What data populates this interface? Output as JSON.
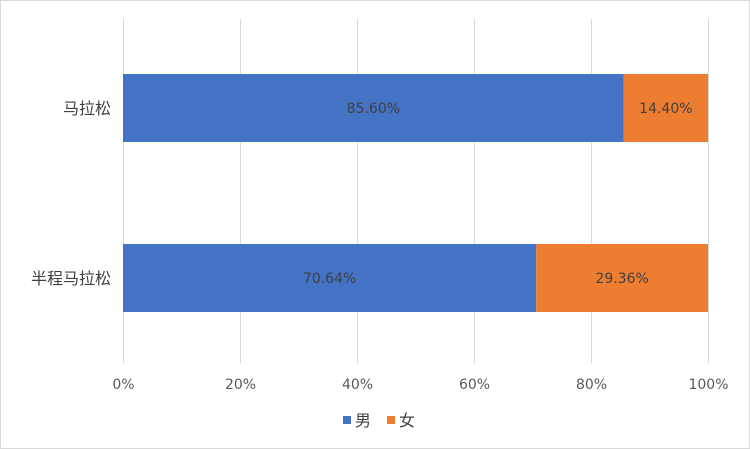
{
  "chart_data": {
    "type": "bar",
    "orientation": "horizontal",
    "stacked": "percent",
    "categories": [
      "马拉松",
      "半程马拉松"
    ],
    "series": [
      {
        "name": "男",
        "values": [
          85.6,
          70.64
        ],
        "labels": [
          "85.60%",
          "70.64%"
        ],
        "color": "#4472C4"
      },
      {
        "name": "女",
        "values": [
          14.4,
          29.36
        ],
        "labels": [
          "14.40%",
          "29.36%"
        ],
        "color": "#ED7D31"
      }
    ],
    "xlim": [
      0,
      100
    ],
    "xticks": [
      0,
      20,
      40,
      60,
      80,
      100
    ],
    "xtick_labels": [
      "0%",
      "20%",
      "40%",
      "60%",
      "80%",
      "100%"
    ],
    "grid": true,
    "grid_color": "#d9d9d9",
    "legend_position": "bottom"
  }
}
